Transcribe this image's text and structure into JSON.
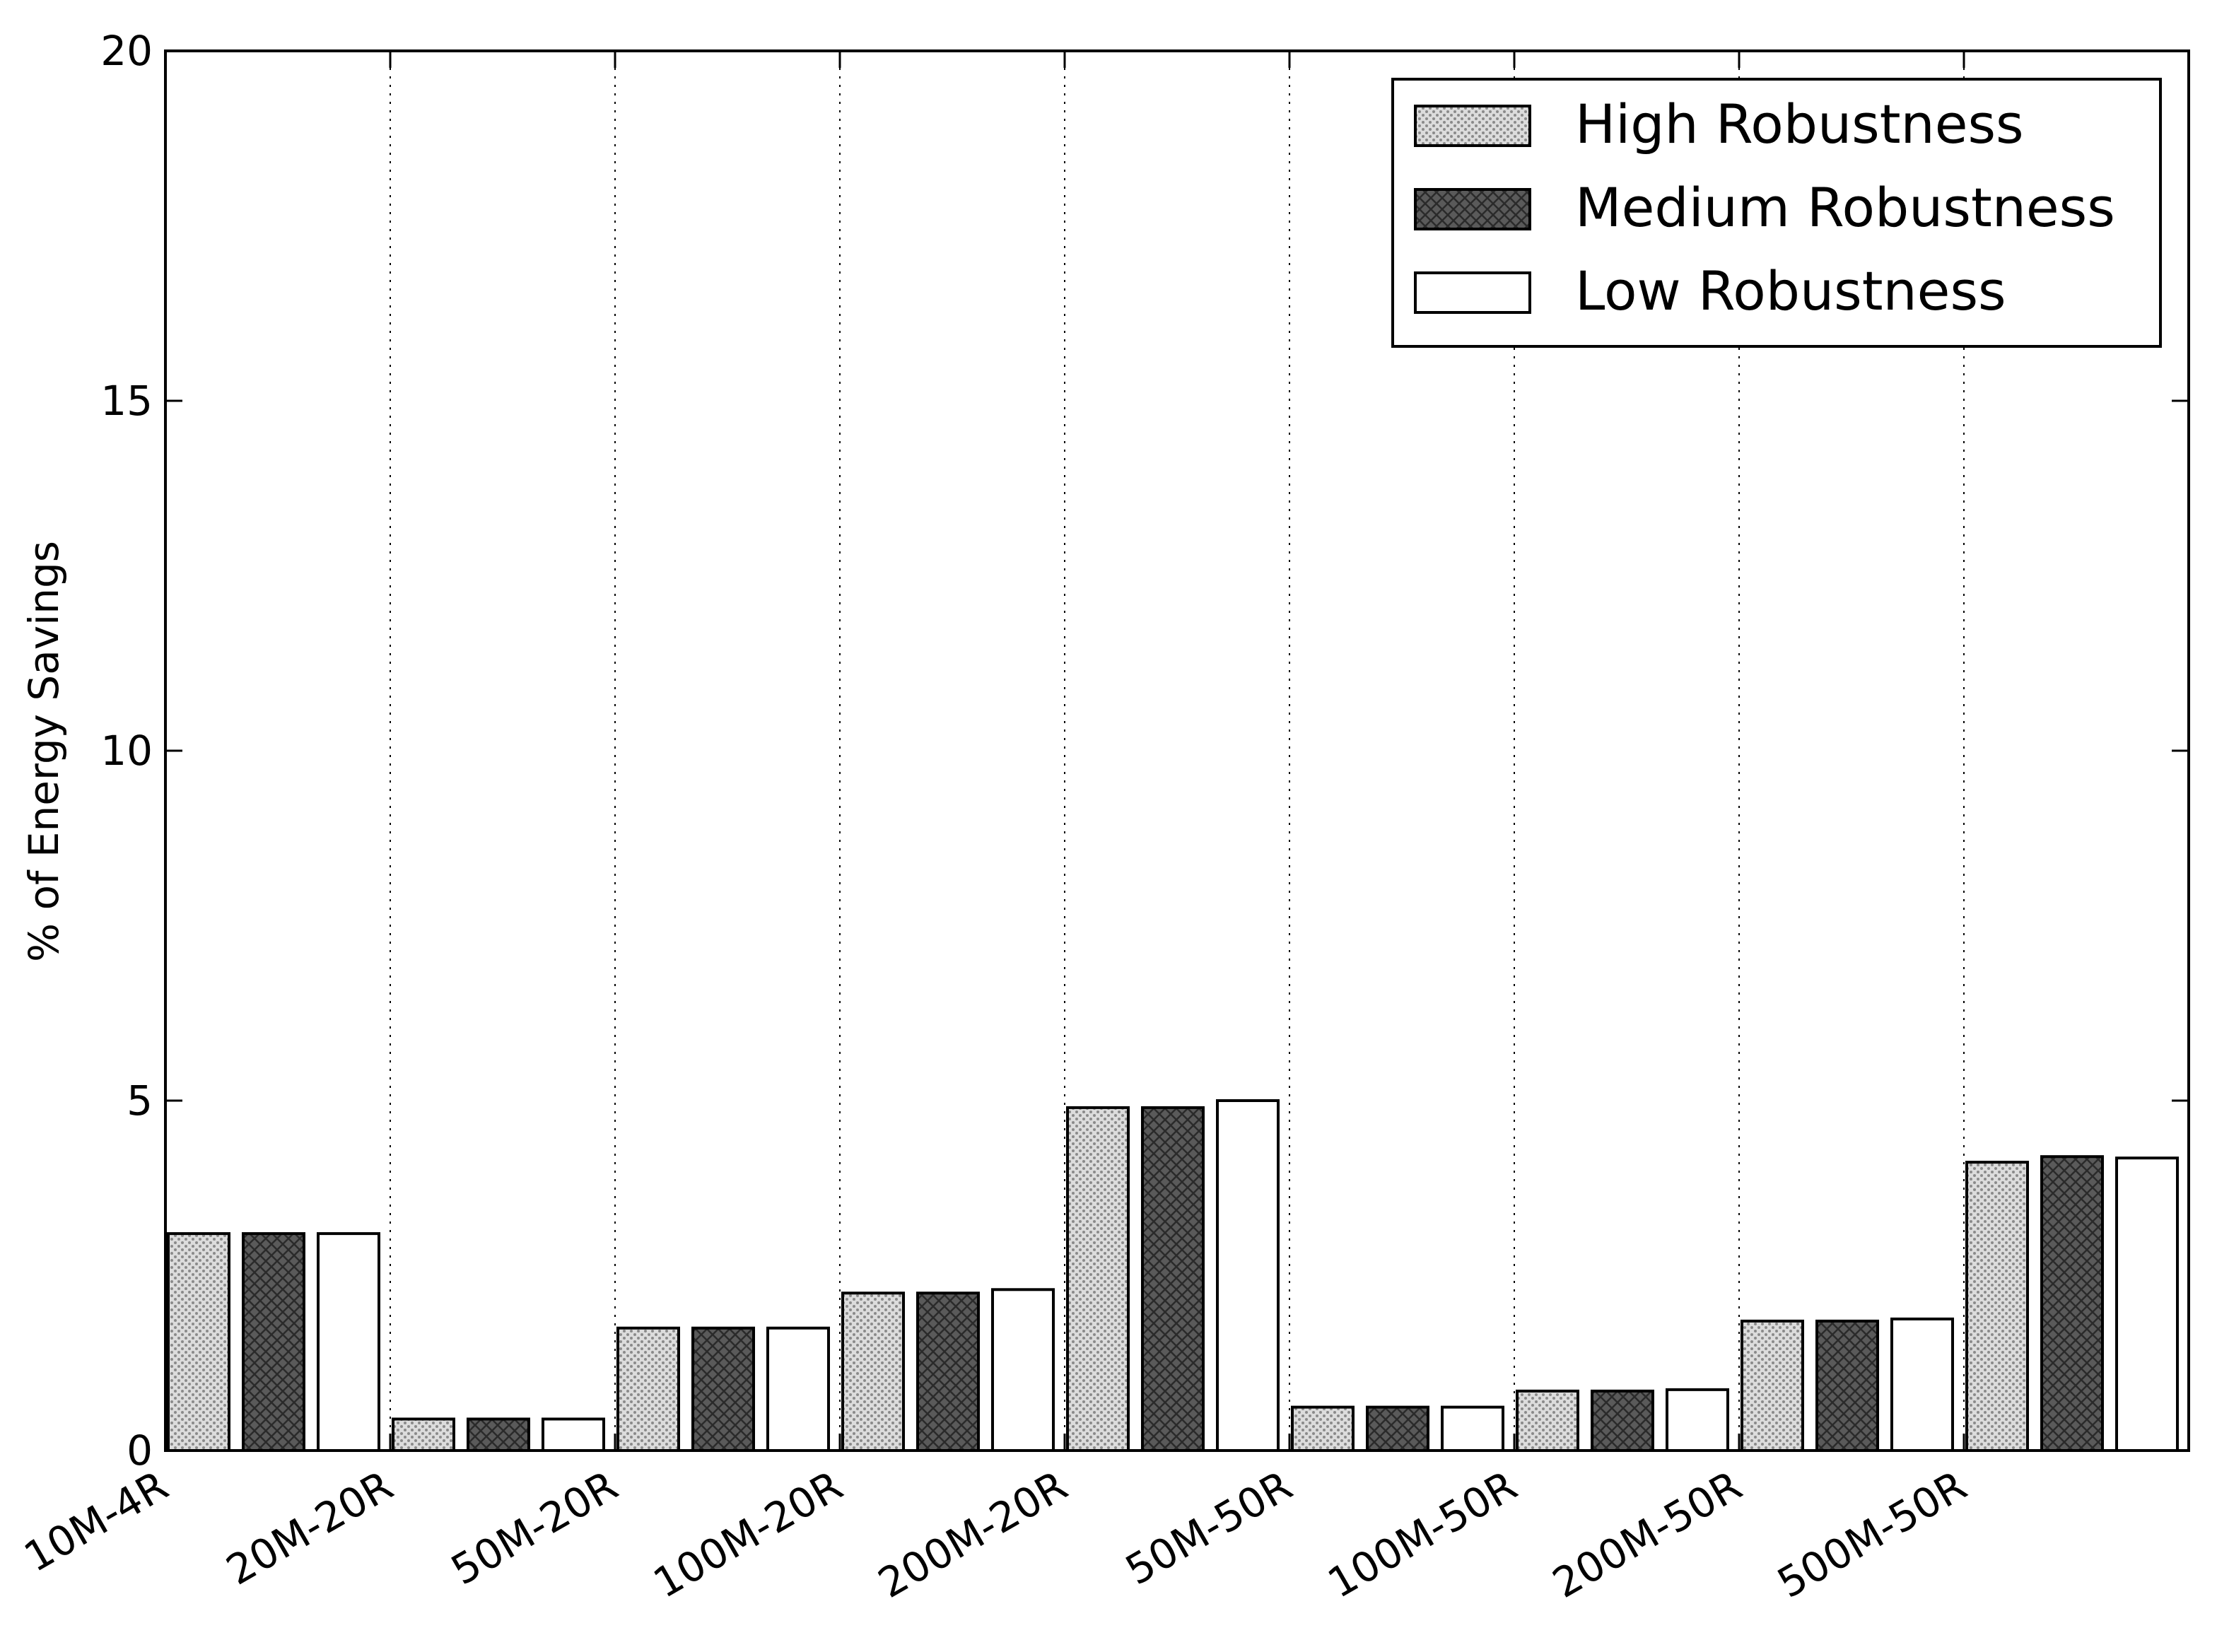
{
  "chart_data": {
    "type": "bar",
    "title": "",
    "xlabel": "",
    "ylabel": "% of Energy Savings",
    "ylim": [
      0,
      20
    ],
    "yticks": [
      0,
      5,
      10,
      15,
      20
    ],
    "grid": "vertical dotted",
    "legend_position": "top-right",
    "categories": [
      "10M-4R",
      "20M-20R",
      "50M-20R",
      "100M-20R",
      "200M-20R",
      "50M-50R",
      "100M-50R",
      "200M-50R",
      "500M-50R"
    ],
    "series": [
      {
        "name": "High Robustness",
        "pattern": "dots",
        "fill": "#dcdcdc",
        "values": [
          3.1,
          0.45,
          1.75,
          2.25,
          4.9,
          0.62,
          0.85,
          1.85,
          4.12
        ]
      },
      {
        "name": "Medium Robustness",
        "pattern": "crosshatch",
        "fill": "#5a5a5a",
        "values": [
          3.1,
          0.45,
          1.75,
          2.25,
          4.9,
          0.62,
          0.85,
          1.85,
          4.2
        ]
      },
      {
        "name": "Low Robustness",
        "pattern": "none",
        "fill": "#ffffff",
        "values": [
          3.1,
          0.45,
          1.75,
          2.3,
          5.0,
          0.62,
          0.87,
          1.88,
          4.18
        ]
      }
    ]
  }
}
